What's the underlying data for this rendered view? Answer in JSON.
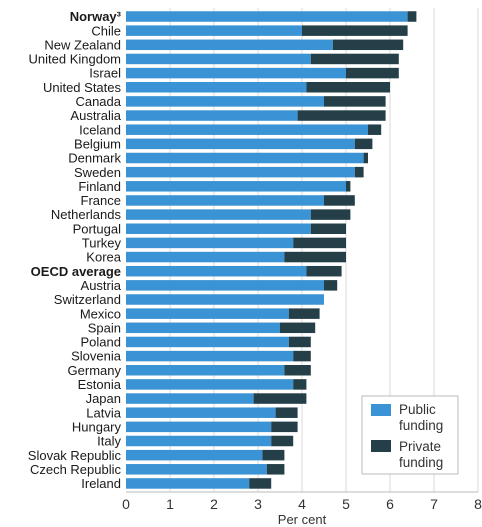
{
  "chart_data": {
    "type": "bar",
    "orientation": "horizontal",
    "stacked": true,
    "xlabel": "Per cent",
    "xlim": [
      0,
      8
    ],
    "xticks": [
      0,
      1,
      2,
      3,
      4,
      5,
      6,
      7,
      8
    ],
    "grid": true,
    "legend_position": "bottom-right",
    "categories": [
      "Norway³",
      "Chile",
      "New Zealand",
      "United Kingdom",
      "Israel",
      "United States",
      "Canada",
      "Australia",
      "Iceland",
      "Belgium",
      "Denmark",
      "Sweden",
      "Finland",
      "France",
      "Netherlands",
      "Portugal",
      "Turkey",
      "Korea",
      "OECD average",
      "Austria",
      "Switzerland",
      "Mexico",
      "Spain",
      "Poland",
      "Slovenia",
      "Germany",
      "Estonia",
      "Japan",
      "Latvia",
      "Hungary",
      "Italy",
      "Slovak Republic",
      "Czech Republic",
      "Ireland"
    ],
    "bold_categories": [
      "Norway³",
      "OECD average"
    ],
    "series": [
      {
        "name": "Public funding",
        "color": "#3a93d4",
        "values": [
          6.4,
          4.0,
          4.7,
          4.2,
          5.0,
          4.1,
          4.5,
          3.9,
          5.5,
          5.2,
          5.4,
          5.2,
          5.0,
          4.5,
          4.2,
          4.2,
          3.8,
          3.6,
          4.1,
          4.5,
          4.5,
          3.7,
          3.5,
          3.7,
          3.8,
          3.6,
          3.8,
          2.9,
          3.4,
          3.3,
          3.3,
          3.1,
          3.2,
          2.8
        ]
      },
      {
        "name": "Private funding",
        "color": "#243f47",
        "values": [
          0.2,
          2.4,
          1.6,
          2.0,
          1.2,
          1.9,
          1.4,
          2.0,
          0.3,
          0.4,
          0.1,
          0.2,
          0.1,
          0.7,
          0.9,
          0.8,
          1.2,
          1.4,
          0.8,
          0.3,
          0.0,
          0.7,
          0.8,
          0.5,
          0.4,
          0.6,
          0.3,
          1.2,
          0.5,
          0.6,
          0.5,
          0.5,
          0.4,
          0.5
        ]
      }
    ]
  },
  "legend": {
    "public_line1": "Public",
    "public_line2": "funding",
    "private_line1": "Private",
    "private_line2": "funding"
  }
}
